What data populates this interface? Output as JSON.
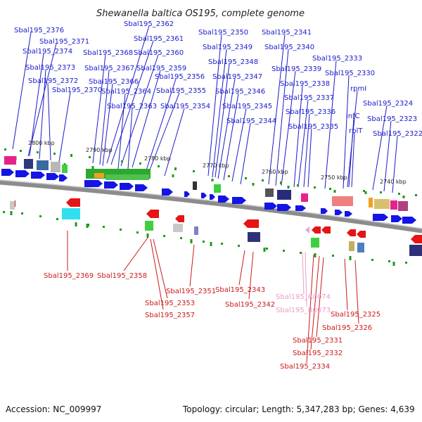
{
  "title": "Shewanella baltica OS195, complete genome",
  "footer": {
    "accession": "Accession: NC_009997",
    "summary": "Topology: circular; Length: 5,347,283 bp; Genes: 4,639"
  },
  "colors": {
    "top_labels": "#1a1acc",
    "bottom_labels": "#cc1a1a",
    "rna_labels": "#e8a0c8",
    "forward": "#1414e6",
    "reverse": "#e61414",
    "backbone": "#8c8c8c"
  },
  "ticks": [
    "2800 kbp",
    "2790 kbp",
    "2780 kbp",
    "2770 kbp",
    "2760 kbp",
    "2750 kbp",
    "2740 kbp"
  ],
  "top_labels": [
    "Sbal195_2376",
    "Sbal195_2371",
    "Sbal195_2374",
    "Sbal195_2373",
    "Sbal195_2372",
    "Sbal195_2370",
    "Sbal195_2362",
    "Sbal195_2361",
    "Sbal195_2368",
    "Sbal195_2360",
    "Sbal195_2367",
    "Sbal195_2359",
    "Sbal195_2366",
    "Sbal195_2356",
    "Sbal195_2364",
    "Sbal195_2355",
    "Sbal195_2363",
    "Sbal195_2354",
    "Sbal195_2350",
    "Sbal195_2349",
    "Sbal195_2348",
    "Sbal195_2347",
    "Sbal195_2346",
    "Sbal195_2345",
    "Sbal195_2344",
    "Sbal195_2341",
    "Sbal195_2340",
    "Sbal195_2339",
    "Sbal195_2338",
    "Sbal195_2337",
    "Sbal195_2336",
    "Sbal195_2335",
    "Sbal195_2333",
    "Sbal195_2330",
    "rpmI",
    "infC",
    "rplT",
    "Sbal195_2324",
    "Sbal195_2323",
    "Sbal195_2322"
  ],
  "bottom_labels": [
    "Sbal195_2369",
    "Sbal195_2358",
    "Sbal195_2357",
    "Sbal195_2353",
    "Sbal195_2351",
    "Sbal195_2343",
    "Sbal195_2342",
    "Sbal195_R0074",
    "Sbal195_R0073",
    "Sbal195_2325",
    "Sbal195_2326",
    "Sbal195_2331",
    "Sbal195_2332",
    "Sbal195_2334"
  ]
}
